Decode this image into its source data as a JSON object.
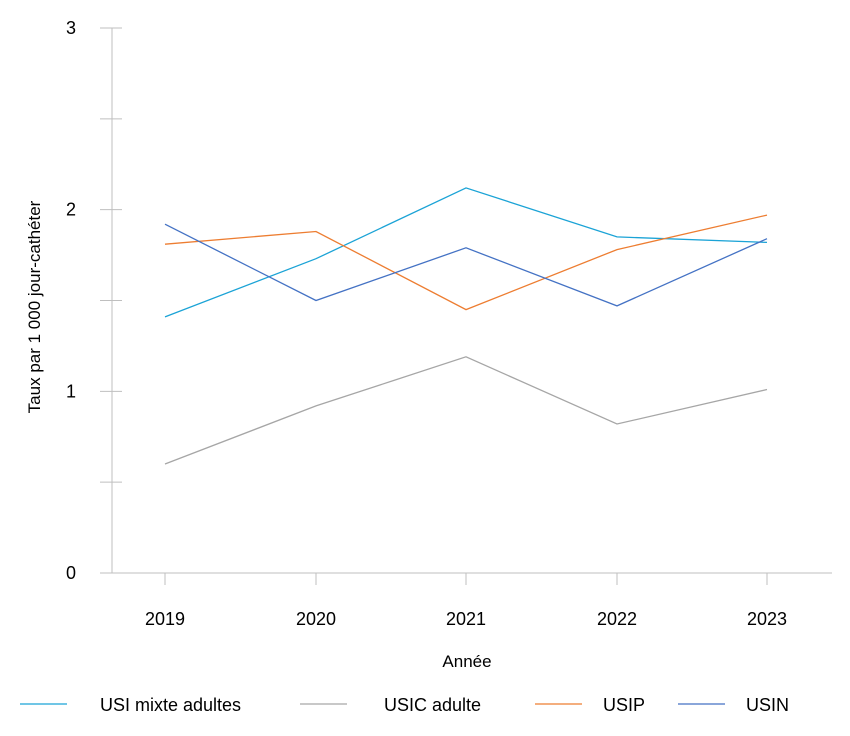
{
  "chart_data": {
    "type": "line",
    "title": "",
    "xlabel": "Année",
    "ylabel": "Taux par 1 000 jour-cathéter",
    "categories": [
      "2019",
      "2020",
      "2021",
      "2022",
      "2023"
    ],
    "ylim": [
      0,
      3
    ],
    "yticks": [
      0,
      1,
      2,
      3
    ],
    "grid": false,
    "legend_position": "bottom",
    "series": [
      {
        "name": "USI mixte adultes",
        "color": "#1ba3d6",
        "values": [
          1.41,
          1.73,
          2.12,
          1.85,
          1.82
        ]
      },
      {
        "name": "USIC adulte",
        "color": "#a6a6a6",
        "values": [
          0.6,
          0.92,
          1.19,
          0.82,
          1.01
        ]
      },
      {
        "name": "USIP",
        "color": "#ed7d31",
        "values": [
          1.81,
          1.88,
          1.45,
          1.78,
          1.97
        ]
      },
      {
        "name": "USIN",
        "color": "#4472c4",
        "values": [
          1.92,
          1.5,
          1.79,
          1.47,
          1.84
        ]
      }
    ]
  }
}
